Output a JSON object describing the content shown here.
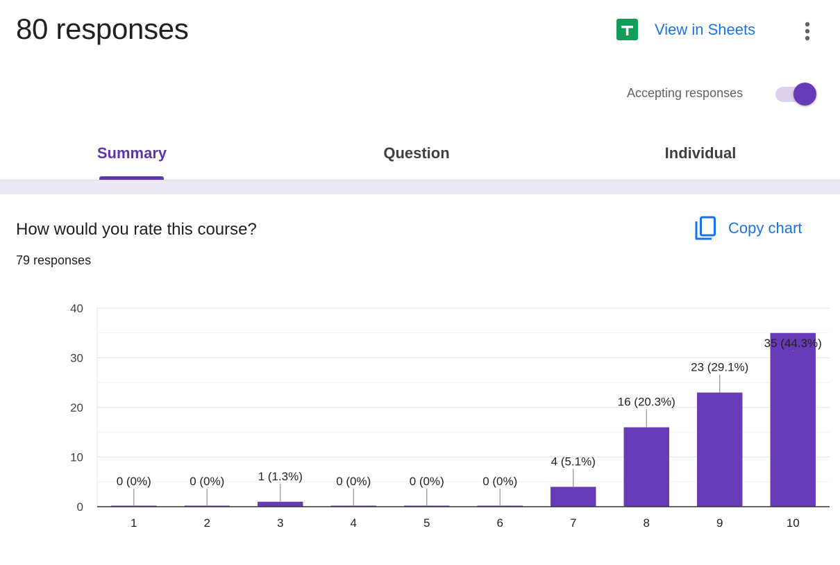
{
  "header": {
    "title": "80 responses",
    "view_in_sheets": "View in Sheets",
    "accepting_label": "Accepting responses",
    "accepting": true
  },
  "tabs": [
    {
      "label": "Summary",
      "active": true
    },
    {
      "label": "Question",
      "active": false
    },
    {
      "label": "Individual",
      "active": false
    }
  ],
  "question": {
    "title": "How would you rate this course?",
    "response_count": "79 responses",
    "copy_chart": "Copy chart"
  },
  "colors": {
    "accent": "#673ab7",
    "link": "#1a73e8",
    "sheets_green": "#0f9d58",
    "bar": "#673ab7"
  },
  "icons": {
    "sheets": "google-sheets-icon",
    "more": "more-vert-icon",
    "copy": "copy-icon"
  },
  "chart_data": {
    "type": "bar",
    "categories": [
      "1",
      "2",
      "3",
      "4",
      "5",
      "6",
      "7",
      "8",
      "9",
      "10"
    ],
    "values": [
      0,
      0,
      1,
      0,
      0,
      0,
      4,
      16,
      23,
      35
    ],
    "labels": [
      "0 (0%)",
      "0 (0%)",
      "1 (1.3%)",
      "0 (0%)",
      "0 (0%)",
      "0 (0%)",
      "4 (5.1%)",
      "16 (20.3%)",
      "23 (29.1%)",
      "35 (44.3%)"
    ],
    "yticks": [
      0,
      10,
      20,
      30,
      40
    ],
    "ylim": [
      0,
      40
    ],
    "grid": true
  }
}
